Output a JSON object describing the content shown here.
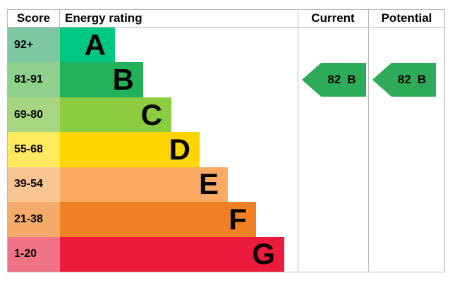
{
  "header": {
    "score": "Score",
    "energy_rating": "Energy rating",
    "current": "Current",
    "potential": "Potential"
  },
  "chart_data": {
    "type": "table",
    "subtype": "epc-energy-rating-chart",
    "bands": [
      {
        "grade": "A",
        "score_range": "92+",
        "bar_color": "#00c781",
        "score_cell_color": "#7ec9a4"
      },
      {
        "grade": "B",
        "score_range": "81-91",
        "bar_color": "#22b259",
        "score_cell_color": "#8fd08c"
      },
      {
        "grade": "C",
        "score_range": "69-80",
        "bar_color": "#8ccd3f",
        "score_cell_color": "#a8d57f"
      },
      {
        "grade": "D",
        "score_range": "55-68",
        "bar_color": "#ffd500",
        "score_cell_color": "#ffe95e"
      },
      {
        "grade": "E",
        "score_range": "39-54",
        "bar_color": "#fcaa63",
        "score_cell_color": "#f9c693"
      },
      {
        "grade": "F",
        "score_range": "21-38",
        "bar_color": "#ef8023",
        "score_cell_color": "#f3aa6b"
      },
      {
        "grade": "G",
        "score_range": "1-20",
        "bar_color": "#ec1a3d",
        "score_cell_color": "#f07386"
      }
    ],
    "current": {
      "value": 82,
      "grade": "B",
      "arrow_color": "#2dab57"
    },
    "potential": {
      "value": 82,
      "grade": "B",
      "arrow_color": "#2dab57"
    },
    "border_color": "#b9b9b9",
    "legend_position": "none",
    "grid": false
  }
}
